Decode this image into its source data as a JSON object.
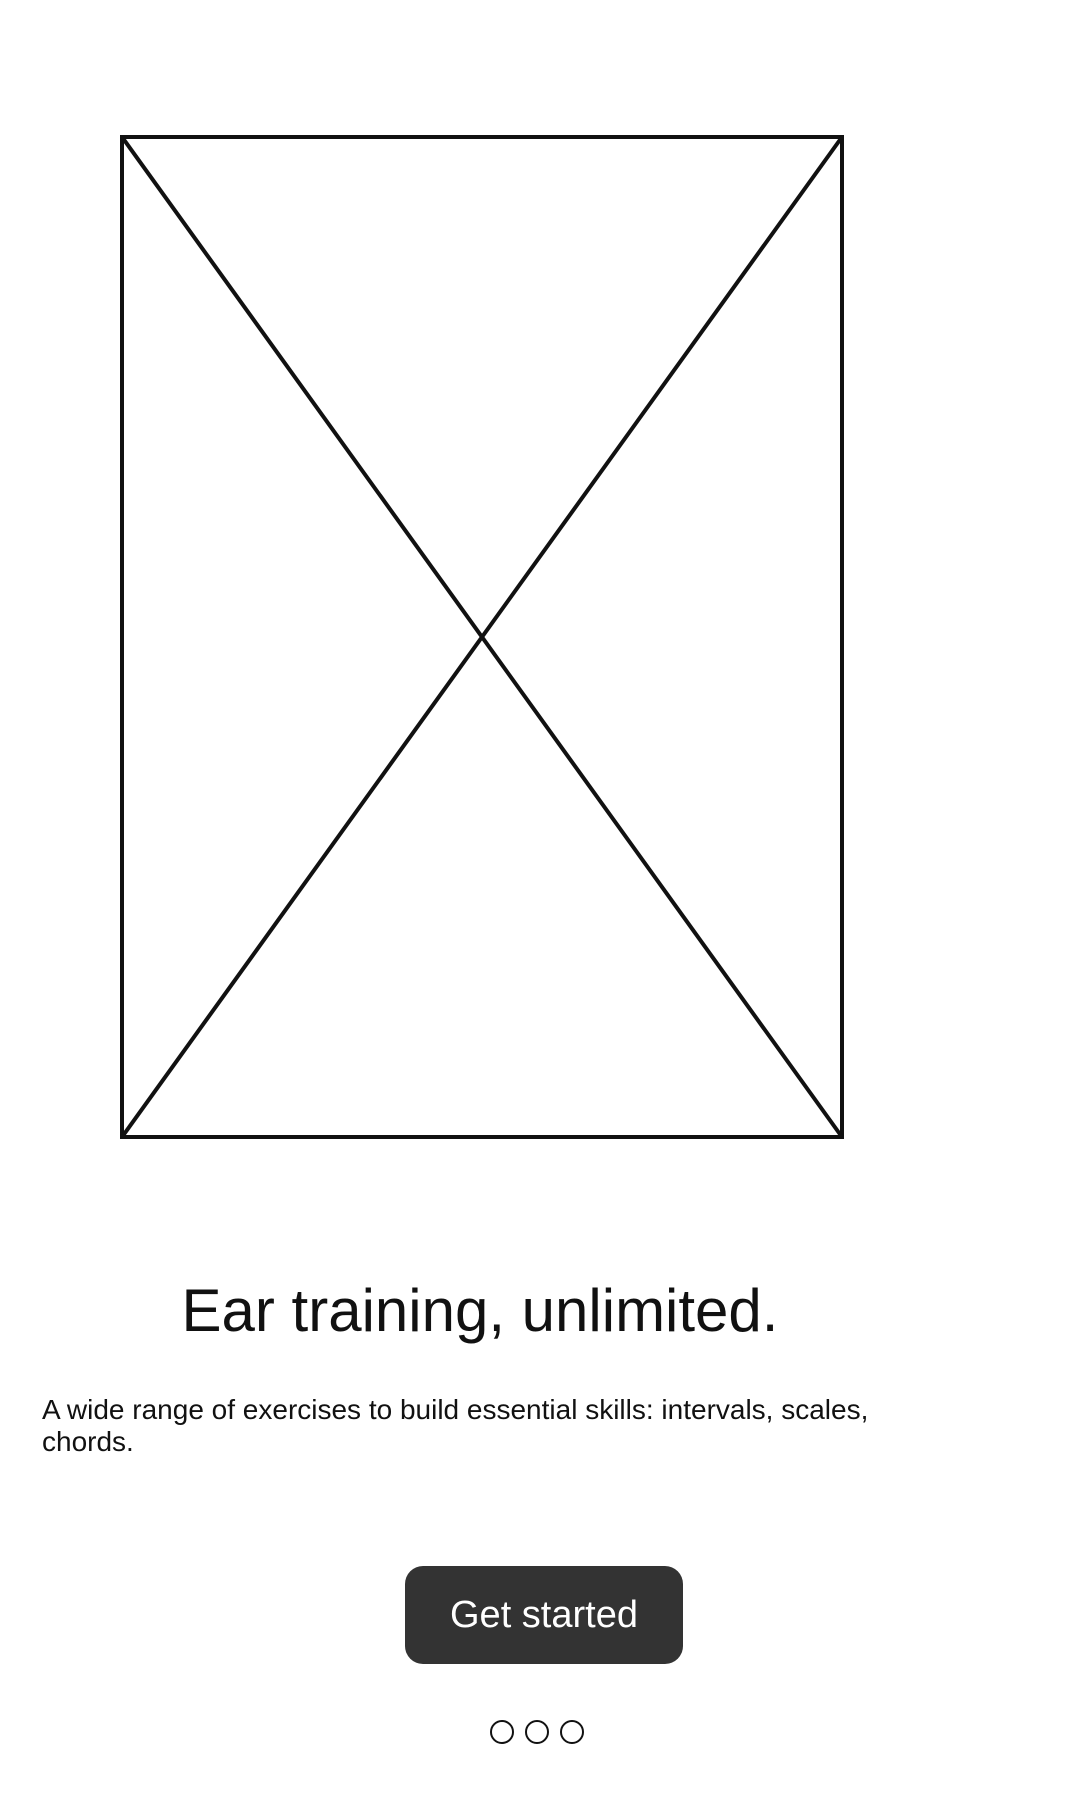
{
  "hero": {
    "image_icon": "image-placeholder-icon"
  },
  "onboarding": {
    "title": "Ear training, unlimited.",
    "description": "A wide range of exercises to build essential skills: intervals, scales, chords.",
    "cta_label": "Get started"
  },
  "pager": {
    "page_count": 3,
    "dots": [
      "page-1",
      "page-2",
      "page-3"
    ]
  }
}
